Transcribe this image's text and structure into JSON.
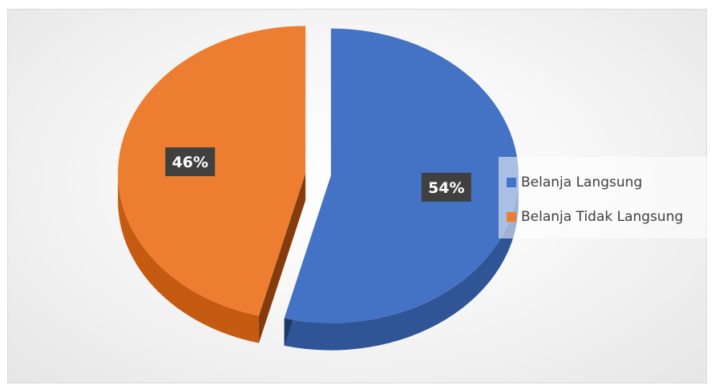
{
  "chart_data": {
    "type": "pie",
    "style": "3d-exploded",
    "title": "",
    "categories": [
      "Belanja Langsung",
      "Belanja Tidak Langsung"
    ],
    "values": [
      54,
      46
    ],
    "labels": [
      "54%",
      "46%"
    ],
    "colors": [
      "#4472C4",
      "#ED7D31"
    ],
    "legend_position": "right"
  }
}
